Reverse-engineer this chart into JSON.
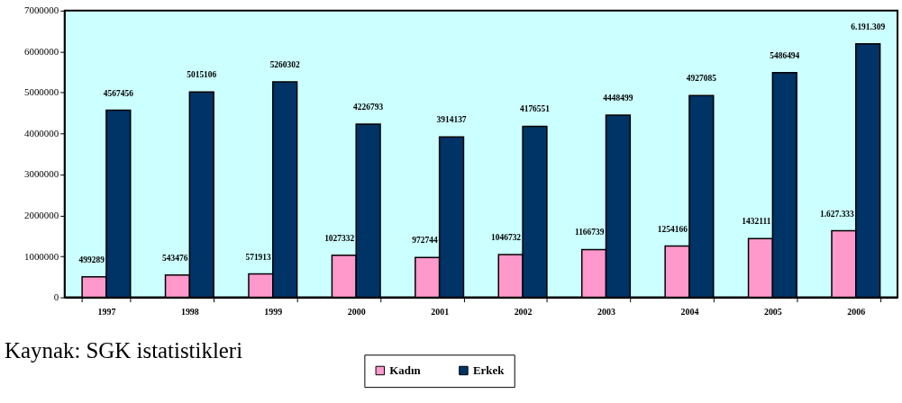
{
  "chart_data": {
    "type": "bar",
    "categories": [
      "1997",
      "1998",
      "1999",
      "2000",
      "2001",
      "2002",
      "2003",
      "2004",
      "2005",
      "2006"
    ],
    "series": [
      {
        "name": "Kadın",
        "color": "#ff99cc",
        "values": [
          499289,
          543476,
          571913,
          1027332,
          972744,
          1046732,
          1166739,
          1254166,
          1432111,
          1627333
        ],
        "value_labels": [
          "499289",
          "543476",
          "571913",
          "1027332",
          "972744",
          "1046732",
          "1166739",
          "1254166",
          "1432111",
          "1.627.333"
        ]
      },
      {
        "name": "Erkek",
        "color": "#003366",
        "values": [
          4567456,
          5015106,
          5260302,
          4226793,
          3914137,
          4176551,
          4448499,
          4927085,
          5486494,
          6191309
        ],
        "value_labels": [
          "4567456",
          "5015106",
          "5260302",
          "4226793",
          "3914137",
          "4176551",
          "4448499",
          "4927085",
          "5486494",
          "6.191.309"
        ]
      }
    ],
    "ylim": [
      0,
      7000000
    ],
    "yticks": [
      0,
      1000000,
      2000000,
      3000000,
      4000000,
      5000000,
      6000000,
      7000000
    ],
    "grid": false,
    "legend": "bottom",
    "annotations": [
      "Kaynak: SGK istatistikleri"
    ]
  }
}
